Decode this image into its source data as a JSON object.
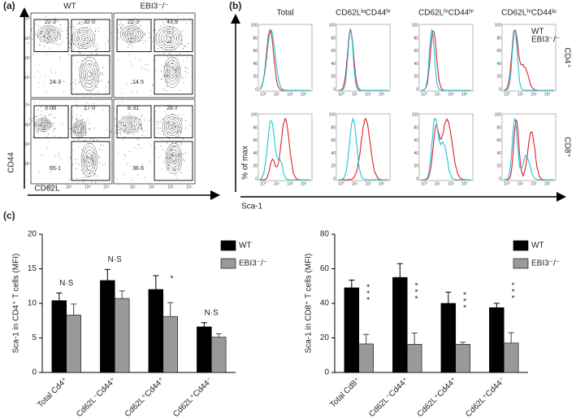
{
  "panel_a": {
    "label": "(a)",
    "columns": [
      "WT",
      "EBI3⁻/⁻"
    ],
    "y_axis_label": "CD44",
    "x_axis_label": "CD62L",
    "axis_ticks": [
      "10¹",
      "10²",
      "10³",
      "10⁴"
    ],
    "plots": [
      {
        "gates": [
          "22·2",
          "32·0",
          "24·3"
        ]
      },
      {
        "gates": [
          "22·3",
          "43·9",
          "14·5"
        ]
      },
      {
        "gates": [
          "3·08",
          "17·0",
          "65·1"
        ]
      },
      {
        "gates": [
          "8·31",
          "28·7",
          "36·6"
        ]
      }
    ]
  },
  "panel_b": {
    "label": "(b)",
    "columns": [
      "Total",
      "CD62LˡᵒCD44ʰⁱ",
      "CD62LʰⁱCD44ʰⁱ",
      "CD62LʰⁱCD44ˡᵒ"
    ],
    "rows": [
      "CD4⁺",
      "CD8⁺"
    ],
    "legend": [
      {
        "name": "WT",
        "color": "#e0202a"
      },
      {
        "name": "EBI3⁻/⁻",
        "color": "#1ec3dc"
      }
    ],
    "y_axis_label": "% of max",
    "x_axis_label": "Sca-1",
    "x_ticks": [
      "10⁰",
      "10¹",
      "10²",
      "10³"
    ],
    "y_ticks": [
      "0",
      "20",
      "40",
      "60",
      "80",
      "100"
    ]
  },
  "panel_c_label": "(c)",
  "chart_data": [
    {
      "type": "bar",
      "y_axis_label": "Sca-1 in CD4⁺ T cells (MFI)",
      "categories": [
        "Total Cd4⁺",
        "Cd62L⁻Cd44⁺",
        "Cd62L⁺Cd44⁺",
        "Cd62L⁺Cd44⁻"
      ],
      "series": [
        {
          "name": "WT",
          "color": "#000000",
          "values": [
            10.4,
            13.3,
            12.0,
            6.6
          ],
          "errors": [
            1.1,
            1.6,
            2.0,
            0.6
          ]
        },
        {
          "name": "EBI3⁻/⁻",
          "color": "#999999",
          "values": [
            8.3,
            10.7,
            8.1,
            5.1
          ],
          "errors": [
            1.6,
            1.1,
            2.0,
            0.5
          ]
        }
      ],
      "annotations": [
        "N·S",
        "N·S",
        "*",
        "N·S"
      ],
      "ylim": [
        0,
        20
      ],
      "yticks": [
        0,
        5,
        10,
        15,
        20
      ]
    },
    {
      "type": "bar",
      "y_axis_label": "Sca-1 in CD8⁺ T cells (MFI)",
      "categories": [
        "Total Cd8⁺",
        "Cd62L⁻Cd44⁺",
        "Cd62L⁺Cd44⁺",
        "Cd62L⁺Cd44⁻"
      ],
      "series": [
        {
          "name": "WT",
          "color": "#000000",
          "values": [
            49,
            55,
            40,
            37.5
          ],
          "errors": [
            4.5,
            8,
            6.5,
            2.5
          ]
        },
        {
          "name": "EBI3⁻/⁻",
          "color": "#999999",
          "values": [
            16.5,
            16.3,
            16.3,
            17
          ],
          "errors": [
            5.5,
            6.5,
            1.2,
            6
          ]
        }
      ],
      "annotations": [
        "***",
        "***",
        "***",
        "***"
      ],
      "ylim": [
        0,
        80
      ],
      "yticks": [
        0,
        20,
        40,
        60,
        80
      ]
    }
  ]
}
